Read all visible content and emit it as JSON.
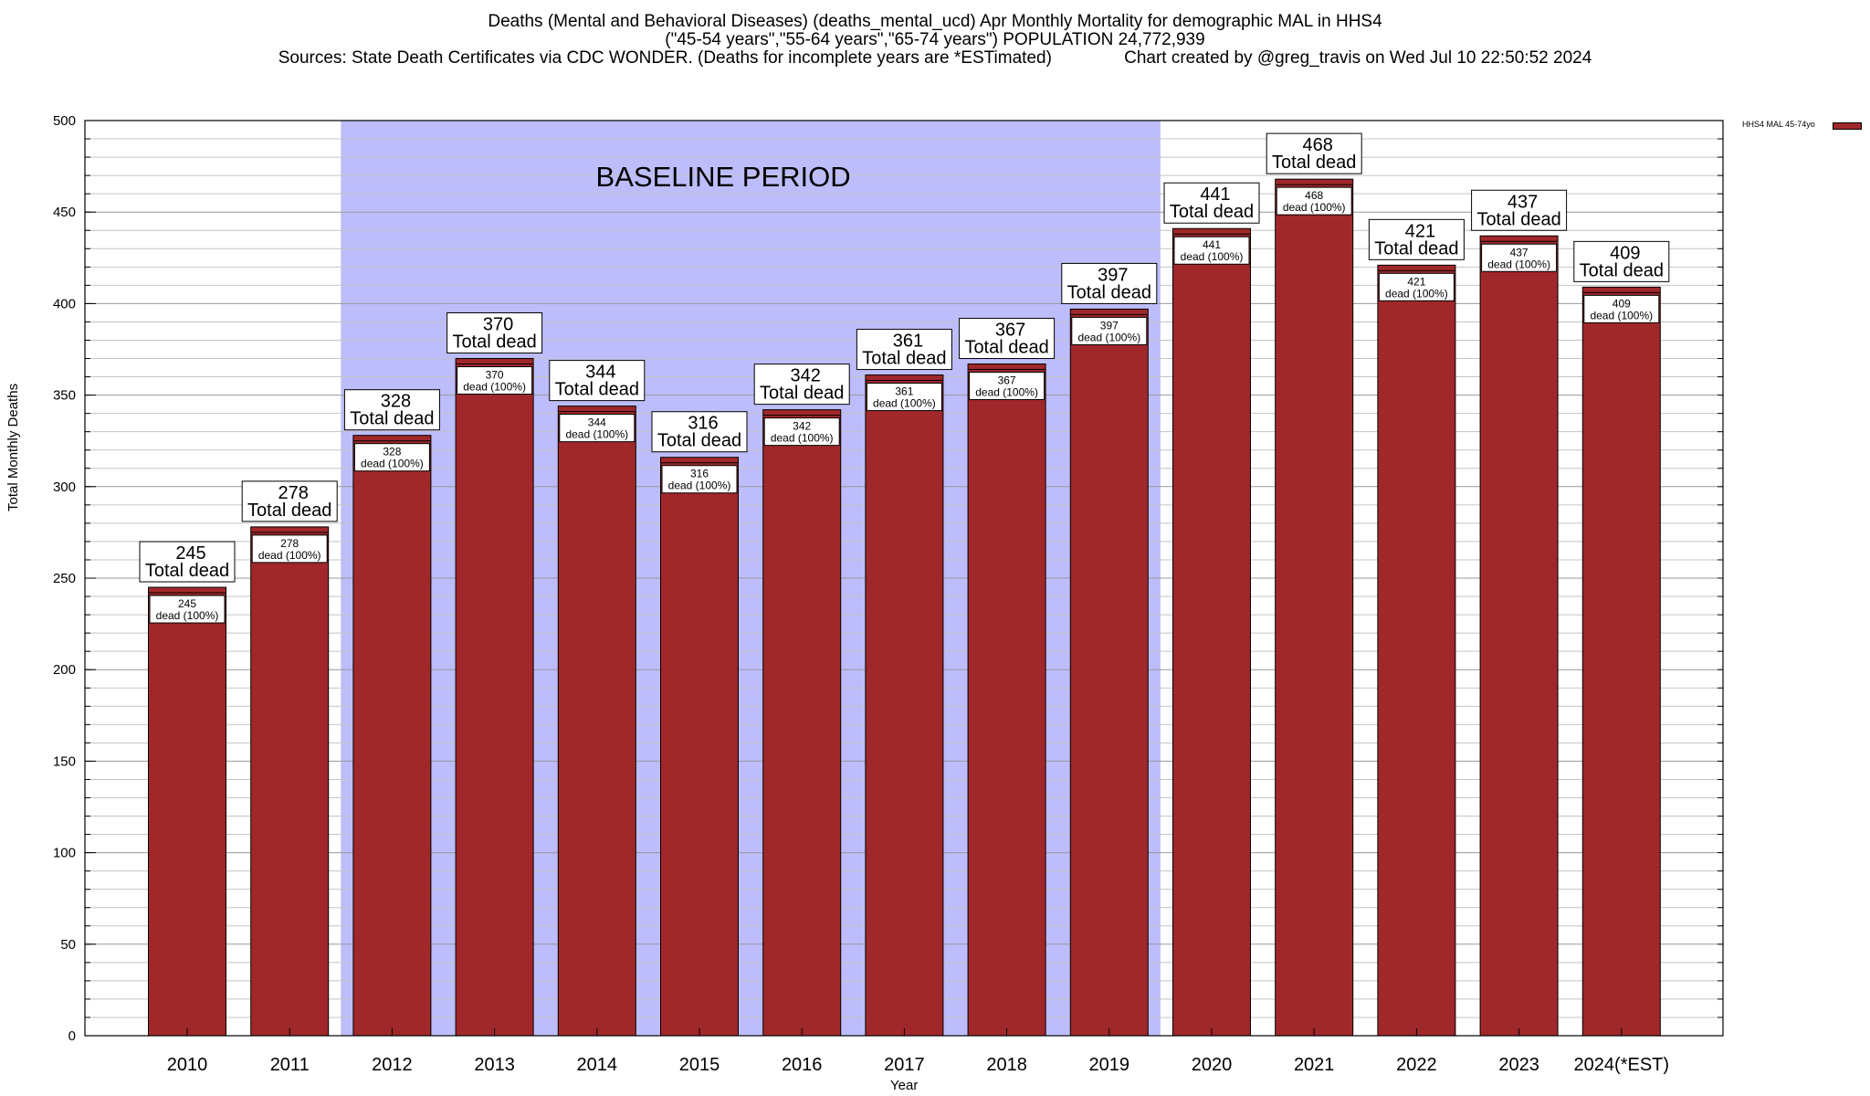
{
  "chart_data": {
    "type": "bar",
    "title": "Deaths (Mental and Behavioral Diseases) (deaths_mental_ucd) Apr Monthly Mortality for demographic MAL in HHS4",
    "subtitle": "(\"45-54 years\",\"55-64 years\",\"65-74 years\") POPULATION 24,772,939",
    "source_note": "Sources: State Death Certificates via CDC WONDER. (Deaths for incomplete years are *ESTimated)",
    "credit": "Chart created by @greg_travis on Wed Jul 10 22:50:52 2024",
    "xlabel": "Year",
    "ylabel": "Total Monthly Deaths",
    "ylim": [
      0,
      500
    ],
    "y_ticks": [
      0,
      50,
      100,
      150,
      200,
      250,
      300,
      350,
      400,
      450,
      500
    ],
    "categories": [
      "2010",
      "2011",
      "2012",
      "2013",
      "2014",
      "2015",
      "2016",
      "2017",
      "2018",
      "2019",
      "2020",
      "2021",
      "2022",
      "2023",
      "2024(*EST)"
    ],
    "series": [
      {
        "name": "HHS4 MAL 45-74yo",
        "color": "#a0282a",
        "values": [
          245,
          278,
          328,
          370,
          344,
          316,
          342,
          361,
          367,
          397,
          441,
          468,
          421,
          437,
          409
        ]
      }
    ],
    "top_label_suffix": "Total dead",
    "inner_label_suffix": "dead (100%)",
    "baseline_region": {
      "label": "BASELINE PERIOD",
      "from": "2012",
      "to": "2019",
      "color": "#bdbdfb"
    },
    "grid": true,
    "legend_position": "top-right"
  }
}
